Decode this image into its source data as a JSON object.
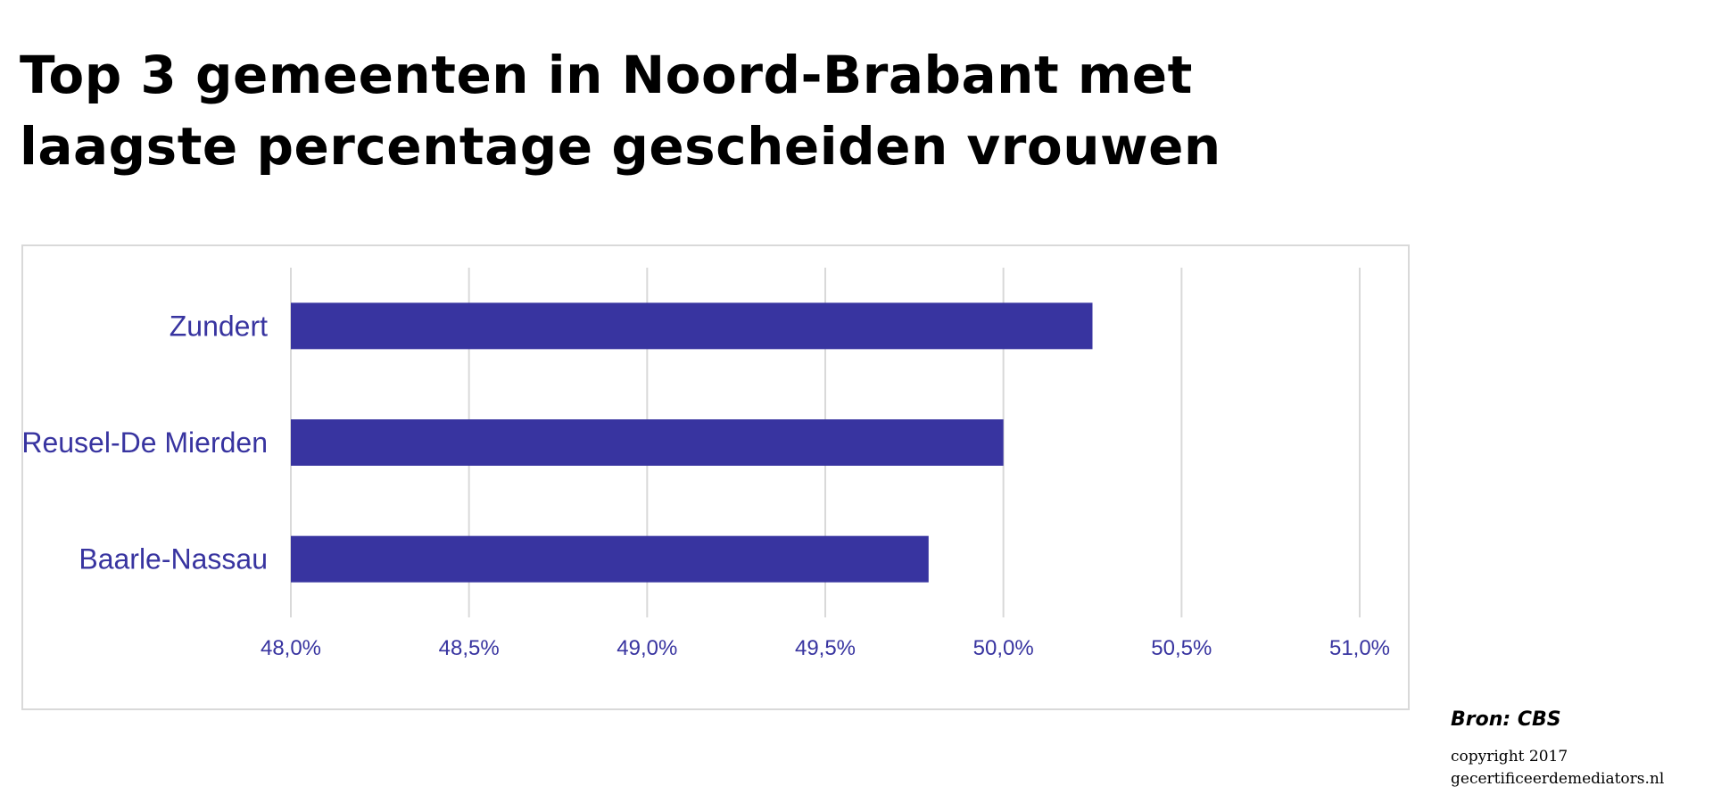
{
  "title": "Top 3 gemeenten in Noord-Brabant met laagste percentage gescheiden vrouwen",
  "source": "Bron: CBS",
  "copyright": {
    "line1": "copyright 2017",
    "line2": "gecertificeerdemediators.nl"
  },
  "colors": {
    "bar": "#3834a0",
    "label": "#3834a0",
    "grid": "#d9d9d9"
  },
  "chart_data": {
    "type": "bar",
    "orientation": "horizontal",
    "categories": [
      "Zundert",
      "Reusel-De Mierden",
      "Baarle-Nassau"
    ],
    "values": [
      50.25,
      50.0,
      49.79
    ],
    "xlim": [
      48.0,
      51.0
    ],
    "x_ticks": [
      48.0,
      48.5,
      49.0,
      49.5,
      50.0,
      50.5,
      51.0
    ],
    "x_tick_labels": [
      "48,0%",
      "48,5%",
      "49,0%",
      "49,5%",
      "50,0%",
      "50,5%",
      "51,0%"
    ],
    "grid": true,
    "legend": false
  }
}
